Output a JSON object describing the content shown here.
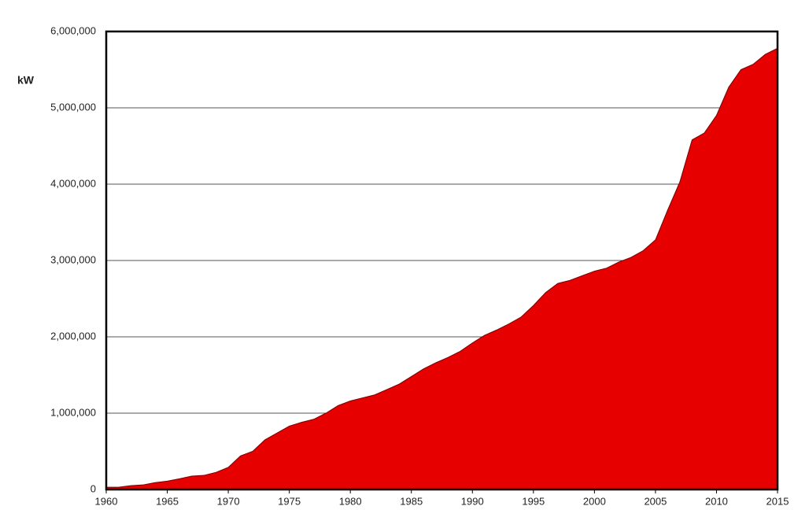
{
  "chart_data": {
    "type": "area",
    "y_label": "kW",
    "x": [
      1960,
      1961,
      1962,
      1963,
      1964,
      1965,
      1966,
      1967,
      1968,
      1969,
      1970,
      1971,
      1972,
      1973,
      1974,
      1975,
      1976,
      1977,
      1978,
      1979,
      1980,
      1981,
      1982,
      1983,
      1984,
      1985,
      1986,
      1987,
      1988,
      1989,
      1990,
      1991,
      1992,
      1993,
      1994,
      1995,
      1996,
      1997,
      1998,
      1999,
      2000,
      2001,
      2002,
      2003,
      2004,
      2005,
      2006,
      2007,
      2008,
      2009,
      2010,
      2011,
      2012,
      2013,
      2014,
      2015
    ],
    "values": [
      30000,
      30000,
      50000,
      60000,
      90000,
      110000,
      140000,
      175000,
      185000,
      225000,
      290000,
      440000,
      500000,
      650000,
      740000,
      830000,
      880000,
      920000,
      1000000,
      1100000,
      1160000,
      1200000,
      1240000,
      1310000,
      1380000,
      1480000,
      1580000,
      1660000,
      1730000,
      1810000,
      1920000,
      2020000,
      2090000,
      2170000,
      2260000,
      2410000,
      2580000,
      2700000,
      2740000,
      2800000,
      2860000,
      2900000,
      2980000,
      3040000,
      3130000,
      3270000,
      3660000,
      4030000,
      4580000,
      4670000,
      4900000,
      5270000,
      5500000,
      5570000,
      5700000,
      5780000
    ],
    "color": "#e60000",
    "xlim": [
      1960,
      2015
    ],
    "xticks": [
      1960,
      1965,
      1970,
      1975,
      1980,
      1985,
      1990,
      1995,
      2000,
      2005,
      2010,
      2015
    ],
    "ylim": [
      0,
      6000000
    ],
    "yticks": [
      0,
      {
        "value": 1000000,
        "label": "1,000,000"
      },
      {
        "value": 2000000,
        "label": "2,000,000"
      },
      {
        "value": 3000000,
        "label": "3,000,000"
      },
      {
        "value": 4000000,
        "label": "4,000,000"
      },
      {
        "value": 5000000,
        "label": "5,000,000"
      },
      {
        "value": 6000000,
        "label": "6,000,000"
      }
    ],
    "grid": true
  }
}
